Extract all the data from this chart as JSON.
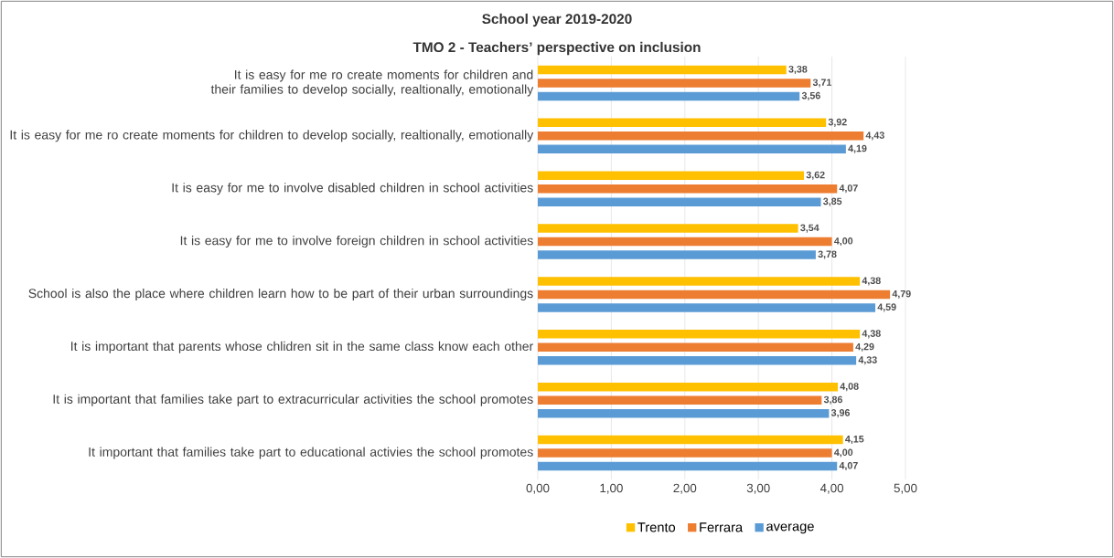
{
  "chart_data": {
    "type": "bar",
    "orientation": "horizontal",
    "title": "School year 2019-2020",
    "subtitle": "TMO 2 - Teachers’ perspective on inclusion",
    "categories": [
      "It is easy for me ro create moments for children and their families to develop socially, realtionally, emotionally",
      "It is easy for me ro create moments for children to develop socially, realtionally, emotionally",
      "It is easy for me to involve disabled children in school activities",
      "It is easy for me to involve foreign children in school activities",
      "School is also the place where children learn how to be part of their urban surroundings",
      "It is important that parents whose chlidren sit in the same class know each other",
      "It is important that families take part to extracurricular activities the school promotes",
      "It important that families take part to educational activies the school promotes"
    ],
    "series": [
      {
        "name": "Trento",
        "color": "#ffc000",
        "values": [
          3.38,
          3.92,
          3.62,
          3.54,
          4.38,
          4.38,
          4.08,
          4.15
        ],
        "value_labels": [
          "3,38",
          "3,92",
          "3,62",
          "3,54",
          "4,38",
          "4,38",
          "4,08",
          "4,15"
        ]
      },
      {
        "name": "Ferrara",
        "color": "#ed7d31",
        "values": [
          3.71,
          4.43,
          4.07,
          4.0,
          4.79,
          4.29,
          3.86,
          4.0
        ],
        "value_labels": [
          "3,71",
          "4,43",
          "4,07",
          "4,00",
          "4,79",
          "4,29",
          "3,86",
          "4,00"
        ]
      },
      {
        "name": "average",
        "color": "#5b9bd5",
        "values": [
          3.56,
          4.19,
          3.85,
          3.78,
          4.59,
          4.33,
          3.96,
          4.07
        ],
        "value_labels": [
          "3,56",
          "4,19",
          "3,85",
          "3,78",
          "4,59",
          "4,33",
          "3,96",
          "4,07"
        ]
      }
    ],
    "xlim": [
      0,
      5
    ],
    "xticks": [
      {
        "value": 0,
        "label": "0,00"
      },
      {
        "value": 1,
        "label": "1,00"
      },
      {
        "value": 2,
        "label": "2,00"
      },
      {
        "value": 3,
        "label": "3,00"
      },
      {
        "value": 4,
        "label": "4,00"
      },
      {
        "value": 5,
        "label": "5,00"
      }
    ],
    "grid": "x",
    "legend": "bottom"
  }
}
